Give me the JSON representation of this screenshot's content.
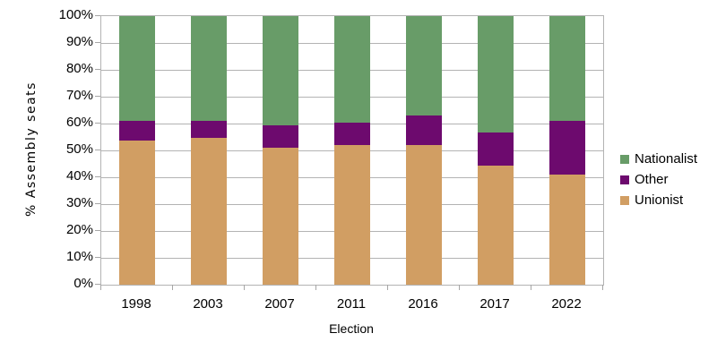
{
  "chart_data": {
    "type": "bar",
    "subtype": "stacked-percentage",
    "title": "",
    "xlabel": "Election",
    "ylabel": "% Assembly seats",
    "categories": [
      "1998",
      "2003",
      "2007",
      "2011",
      "2016",
      "2017",
      "2022"
    ],
    "series": [
      {
        "name": "Unionist",
        "color": "#d19e63",
        "values": [
          53.7,
          54.6,
          50.9,
          51.9,
          51.9,
          44.4,
          41.1
        ]
      },
      {
        "name": "Other",
        "color": "#6d0a6e",
        "values": [
          7.4,
          6.5,
          8.3,
          8.3,
          11.1,
          12.2,
          20.0
        ]
      },
      {
        "name": "Nationalist",
        "color": "#689c68",
        "values": [
          38.9,
          38.9,
          40.7,
          39.8,
          37.0,
          43.3,
          38.9
        ]
      }
    ],
    "ylim": [
      0,
      100
    ],
    "ytick_step": 10,
    "ytick_labels": [
      "0%",
      "10%",
      "20%",
      "30%",
      "40%",
      "50%",
      "60%",
      "70%",
      "80%",
      "90%",
      "100%"
    ],
    "grid": true,
    "gridline_color": "#b3b3b3",
    "axis_color": "#a6a6a6",
    "text_color": "#000000",
    "legend": {
      "position": "right",
      "order": [
        "Nationalist",
        "Other",
        "Unionist"
      ]
    }
  }
}
